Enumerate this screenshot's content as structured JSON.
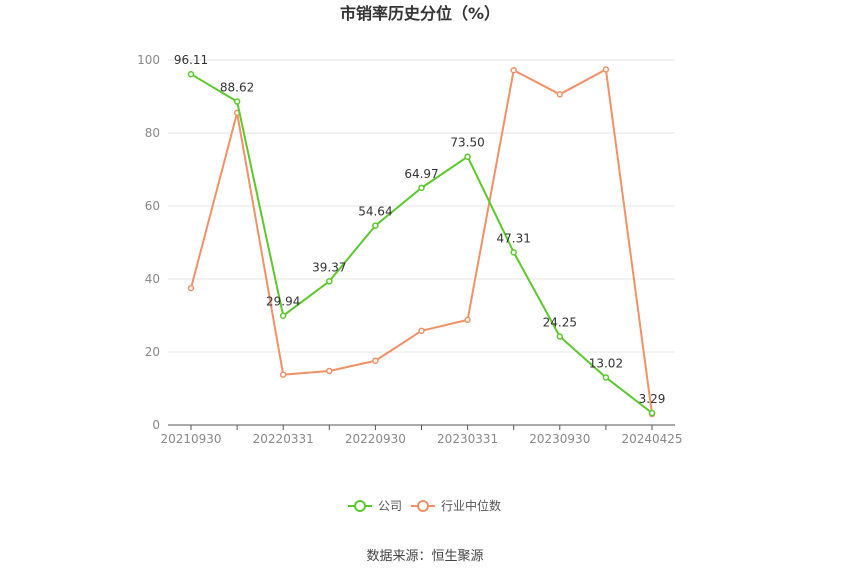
{
  "chart_data": {
    "type": "line",
    "title": "市销率历史分位（%）",
    "source": "数据来源：恒生聚源",
    "x": [
      "20210930",
      "",
      "20220331",
      "",
      "20220930",
      "",
      "20230331",
      "",
      "20230930",
      "",
      "20240425"
    ],
    "xticks": [
      "20210930",
      "20220331",
      "20220930",
      "20230331",
      "20230930",
      "20240425"
    ],
    "ylim": [
      0,
      100
    ],
    "yticks": [
      0,
      20,
      40,
      60,
      80,
      100
    ],
    "grid": true,
    "legend_position": "bottom",
    "series": [
      {
        "name": "公司",
        "color": "#5cc82e",
        "values": [
          96.11,
          88.62,
          29.94,
          39.37,
          54.64,
          64.97,
          73.5,
          47.31,
          24.25,
          13.02,
          3.29
        ],
        "labels": [
          "96.11",
          "88.62",
          "29.94",
          "39.37",
          "54.64",
          "64.97",
          "73.50",
          "47.31",
          "24.25",
          "13.02",
          "3.29"
        ]
      },
      {
        "name": "行业中位数",
        "color": "#f09168",
        "values": [
          37.5,
          85.5,
          13.8,
          14.8,
          17.6,
          25.8,
          28.8,
          97.2,
          90.6,
          97.4,
          3.0
        ]
      }
    ]
  }
}
